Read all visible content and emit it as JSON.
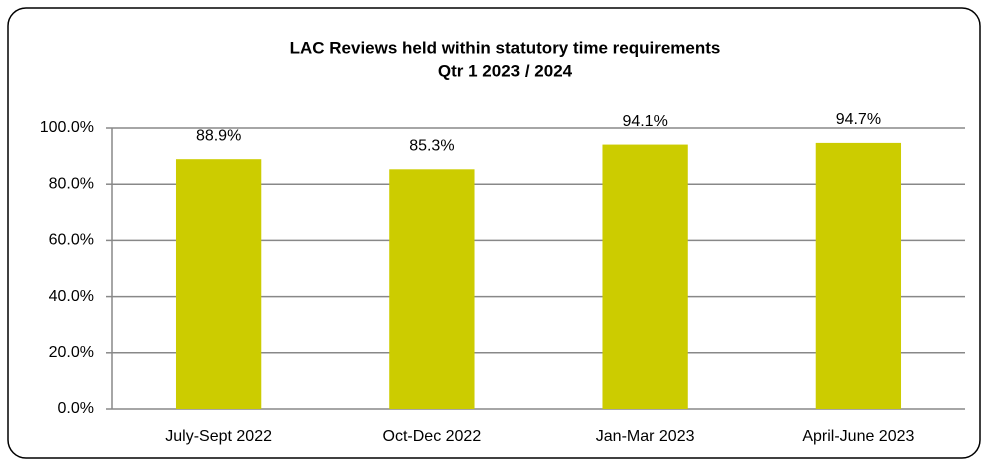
{
  "chart_data": {
    "type": "bar",
    "title": "LAC Reviews held within statutory time requirements",
    "subtitle": "Qtr 1 2023 / 2024",
    "categories": [
      "July-Sept 2022",
      "Oct-Dec 2022",
      "Jan-Mar 2023",
      "April-June 2023"
    ],
    "values": [
      88.9,
      85.3,
      94.1,
      94.7
    ],
    "value_labels": [
      "88.9%",
      "85.3%",
      "94.1%",
      "94.7%"
    ],
    "color": "#cccc00",
    "ylim": [
      0,
      100
    ],
    "yticks": [
      {
        "value": 0,
        "label": "0.0%"
      },
      {
        "value": 20,
        "label": "20.0%"
      },
      {
        "value": 40,
        "label": "40.0%"
      },
      {
        "value": 60,
        "label": "60.0%"
      },
      {
        "value": 80,
        "label": "80.0%"
      },
      {
        "value": 100,
        "label": "100.0%"
      }
    ],
    "grid": true
  }
}
